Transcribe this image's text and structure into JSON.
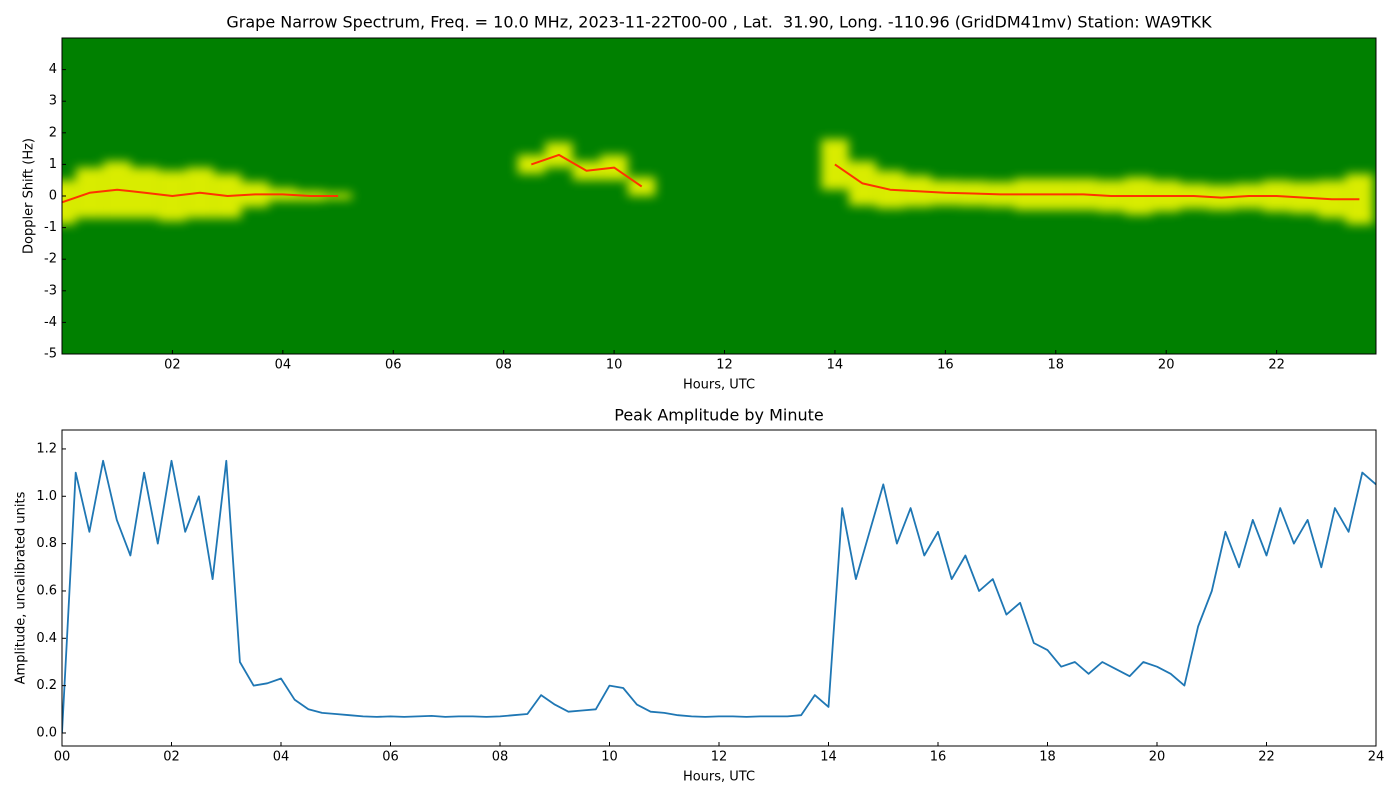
{
  "chart_data": [
    {
      "type": "spectrogram",
      "title": "Grape Narrow Spectrum, Freq. = 10.0 MHz, 2023-11-22T00-00 , Lat.  31.90, Long. -110.96 (GridDM41mv) Station: WA9TKK",
      "xlabel": "Hours, UTC",
      "ylabel": "Doppler Shift (Hz)",
      "background": "#008000",
      "color": "#ff3300",
      "spread_color": "#ffff00",
      "xlim": [
        0,
        23.8
      ],
      "ylim": [
        -5,
        5
      ],
      "xticks": [
        {
          "value": 2,
          "label": "02"
        },
        {
          "value": 4,
          "label": "04"
        },
        {
          "value": 6,
          "label": "06"
        },
        {
          "value": 8,
          "label": "08"
        },
        {
          "value": 10,
          "label": "10"
        },
        {
          "value": 12,
          "label": "12"
        },
        {
          "value": 14,
          "label": "14"
        },
        {
          "value": 16,
          "label": "16"
        },
        {
          "value": 18,
          "label": "18"
        },
        {
          "value": 20,
          "label": "20"
        },
        {
          "value": 22,
          "label": "22"
        }
      ],
      "yticks": [
        -5,
        -4,
        -3,
        -2,
        -1,
        0,
        1,
        2,
        3,
        4
      ],
      "x": [
        0,
        0.5,
        1,
        1.5,
        2,
        2.5,
        3,
        3.5,
        4,
        4.5,
        5,
        5.5,
        6,
        6.5,
        7,
        7.5,
        8,
        8.5,
        9,
        9.5,
        10,
        10.5,
        11,
        11.5,
        12,
        12.5,
        13,
        13.5,
        14,
        14.5,
        15,
        15.5,
        16,
        16.5,
        17,
        17.5,
        18,
        18.5,
        19,
        19.5,
        20,
        20.5,
        21,
        21.5,
        22,
        22.5,
        23,
        23.5
      ],
      "values": [
        -0.2,
        0.1,
        0.2,
        0.1,
        0.0,
        0.1,
        0.0,
        0.05,
        0.05,
        0.0,
        0.0,
        null,
        null,
        null,
        null,
        null,
        null,
        1.0,
        1.3,
        0.8,
        0.9,
        0.3,
        null,
        null,
        null,
        null,
        null,
        null,
        1.0,
        0.4,
        0.2,
        0.15,
        0.1,
        0.08,
        0.05,
        0.05,
        0.05,
        0.05,
        0.0,
        0.0,
        0.0,
        0.0,
        -0.05,
        0.0,
        0.0,
        -0.05,
        -0.1,
        -0.1
      ],
      "spread": [
        0.7,
        0.8,
        0.9,
        0.8,
        0.8,
        0.8,
        0.7,
        0.4,
        0.2,
        0.15,
        0.1,
        null,
        null,
        null,
        null,
        null,
        null,
        0.3,
        0.4,
        0.3,
        0.4,
        0.3,
        null,
        null,
        null,
        null,
        null,
        null,
        0.8,
        0.7,
        0.6,
        0.5,
        0.4,
        0.4,
        0.4,
        0.5,
        0.5,
        0.5,
        0.5,
        0.6,
        0.5,
        0.4,
        0.4,
        0.4,
        0.5,
        0.5,
        0.6,
        0.8
      ]
    },
    {
      "type": "line",
      "title": "Peak Amplitude by Minute",
      "xlabel": "Hours, UTC",
      "ylabel": "Amplitude, uncalibrated units",
      "color": "#1f77b4",
      "xlim": [
        0,
        24
      ],
      "ylim": [
        -0.055,
        1.28
      ],
      "xticks": [
        {
          "value": 0,
          "label": "00"
        },
        {
          "value": 2,
          "label": "02"
        },
        {
          "value": 4,
          "label": "04"
        },
        {
          "value": 6,
          "label": "06"
        },
        {
          "value": 8,
          "label": "08"
        },
        {
          "value": 10,
          "label": "10"
        },
        {
          "value": 12,
          "label": "12"
        },
        {
          "value": 14,
          "label": "14"
        },
        {
          "value": 16,
          "label": "16"
        },
        {
          "value": 18,
          "label": "18"
        },
        {
          "value": 20,
          "label": "20"
        },
        {
          "value": 22,
          "label": "22"
        },
        {
          "value": 24,
          "label": "24"
        }
      ],
      "yticks": [
        {
          "value": 0,
          "label": "0.0"
        },
        0.2,
        0.4,
        0.6,
        0.8,
        {
          "value": 1,
          "label": "1.0"
        },
        1.2
      ],
      "x": [
        0,
        0.25,
        0.5,
        0.75,
        1,
        1.25,
        1.5,
        1.75,
        2,
        2.25,
        2.5,
        2.75,
        3,
        3.25,
        3.5,
        3.75,
        4,
        4.25,
        4.5,
        4.75,
        5,
        5.25,
        5.5,
        5.75,
        6,
        6.25,
        6.5,
        6.75,
        7,
        7.25,
        7.5,
        7.75,
        8,
        8.25,
        8.5,
        8.75,
        9,
        9.25,
        9.5,
        9.75,
        10,
        10.25,
        10.5,
        10.75,
        11,
        11.25,
        11.5,
        11.75,
        12,
        12.25,
        12.5,
        12.75,
        13,
        13.25,
        13.5,
        13.75,
        14,
        14.25,
        14.5,
        14.75,
        15,
        15.25,
        15.5,
        15.75,
        16,
        16.25,
        16.5,
        16.75,
        17,
        17.25,
        17.5,
        17.75,
        18,
        18.25,
        18.5,
        18.75,
        19,
        19.25,
        19.5,
        19.75,
        20,
        20.25,
        20.5,
        20.75,
        21,
        21.25,
        21.5,
        21.75,
        22,
        22.25,
        22.5,
        22.75,
        23,
        23.25,
        23.5,
        23.75,
        24
      ],
      "values": [
        0.0,
        1.1,
        0.85,
        1.15,
        0.9,
        0.75,
        1.1,
        0.8,
        1.15,
        0.85,
        1.0,
        0.65,
        1.15,
        0.3,
        0.2,
        0.21,
        0.23,
        0.14,
        0.1,
        0.085,
        0.08,
        0.075,
        0.07,
        0.068,
        0.07,
        0.068,
        0.07,
        0.072,
        0.068,
        0.07,
        0.07,
        0.068,
        0.07,
        0.075,
        0.08,
        0.16,
        0.12,
        0.09,
        0.095,
        0.1,
        0.2,
        0.19,
        0.12,
        0.09,
        0.085,
        0.075,
        0.07,
        0.068,
        0.07,
        0.07,
        0.068,
        0.07,
        0.07,
        0.07,
        0.075,
        0.16,
        0.11,
        0.95,
        0.65,
        0.85,
        1.05,
        0.8,
        0.95,
        0.75,
        0.85,
        0.65,
        0.75,
        0.6,
        0.65,
        0.5,
        0.55,
        0.38,
        0.35,
        0.28,
        0.3,
        0.25,
        0.3,
        0.27,
        0.24,
        0.3,
        0.28,
        0.25,
        0.2,
        0.45,
        0.6,
        0.85,
        0.7,
        0.9,
        0.75,
        0.95,
        0.8,
        0.9,
        0.7,
        0.95,
        0.85,
        1.1,
        1.05
      ]
    }
  ]
}
